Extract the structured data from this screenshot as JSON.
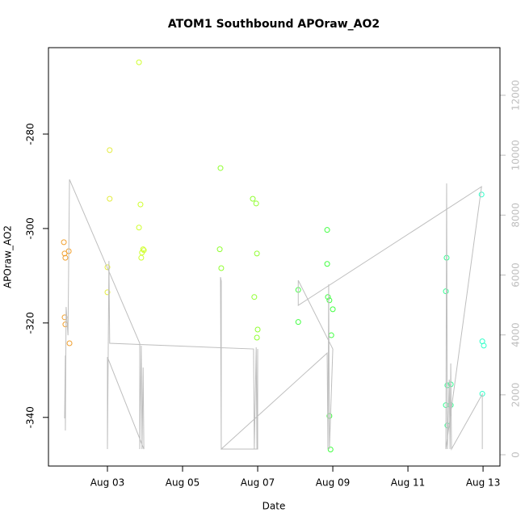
{
  "chart_data": {
    "type": "scatter",
    "title": "ATOM1 Southbound APOraw_AO2",
    "xlabel": "Date",
    "ylabel": "APOraw_AO2",
    "xlim": [
      1.43,
      13.45
    ],
    "xticks": [
      {
        "value": 3,
        "label": "Aug 03"
      },
      {
        "value": 5,
        "label": "Aug 05"
      },
      {
        "value": 7,
        "label": "Aug 07"
      },
      {
        "value": 9,
        "label": "Aug 09"
      },
      {
        "value": 11,
        "label": "Aug 11"
      },
      {
        "value": 13,
        "label": "Aug 13"
      }
    ],
    "ylim": [
      -350.3,
      -261.7
    ],
    "yticks": [
      -340,
      -320,
      -300,
      -280
    ],
    "y2lim": [
      -377,
      13590
    ],
    "y2ticks": [
      0,
      2000,
      4000,
      6000,
      8000,
      10000,
      12000
    ],
    "y2color": "#bebebe",
    "series": [
      {
        "color": "#f0a030",
        "x": [
          1.84,
          1.86,
          1.88,
          1.97,
          1.86,
          1.88,
          1.99
        ],
        "values": [
          -302.9,
          -305.3,
          -306.2,
          -304.8,
          -318.8,
          -320.3,
          -324.3
        ]
      },
      {
        "color": "#e4ec40",
        "x": [
          3.06,
          3.06,
          3.0,
          3.0
        ],
        "values": [
          -283.4,
          -293.7,
          -308.2,
          -313.5
        ]
      },
      {
        "color": "#d0ff30",
        "x": [
          3.84,
          3.88,
          3.84,
          3.9,
          3.95,
          3.97,
          3.92
        ],
        "values": [
          -264.8,
          -294.9,
          -299.8,
          -306.2,
          -304.4,
          -304.6,
          -305.1
        ]
      },
      {
        "color": "#90ff30",
        "x": [
          6.01,
          5.99,
          6.03,
          6.87,
          6.96,
          6.98,
          6.91,
          7.0,
          6.98
        ],
        "values": [
          -287.2,
          -304.4,
          -308.4,
          -293.7,
          -294.7,
          -305.3,
          -314.5,
          -321.4,
          -323.1
        ]
      },
      {
        "color": "#40ff40",
        "x": [
          8.08,
          8.08,
          8.85,
          8.85,
          8.87,
          8.91,
          9.0,
          8.96,
          8.91,
          8.94
        ],
        "values": [
          -313.0,
          -319.8,
          -300.3,
          -307.5,
          -314.5,
          -315.2,
          -317.1,
          -322.6,
          -339.7,
          -346.8
        ]
      },
      {
        "color": "#30ff90",
        "x": [
          12.03,
          12.01,
          12.05,
          12.14,
          12.01,
          12.14,
          12.05
        ],
        "values": [
          -306.2,
          -313.3,
          -333.2,
          -333.0,
          -337.4,
          -337.4,
          -341.7
        ]
      },
      {
        "color": "#30ffc8",
        "x": [
          12.96,
          12.98,
          13.02,
          12.98
        ],
        "values": [
          -292.8,
          -323.9,
          -324.8,
          -335.0
        ]
      },
      {
        "type": "line",
        "axis": "y2",
        "color": "#bebebe",
        "x": [
          1.86,
          1.88,
          1.88,
          1.9,
          1.95,
          1.99,
          3.86,
          3.86,
          3.9,
          3.92,
          3.95,
          3.97,
          3.0,
          3.0,
          3.02,
          3.04,
          3.06,
          6.89,
          6.91,
          6.96,
          6.98,
          7.0,
          7.0,
          6.03,
          6.01,
          6.03,
          6.03,
          8.85,
          8.87,
          8.89,
          8.91,
          9.0,
          8.08,
          8.08,
          12.96,
          12.01,
          12.03,
          12.05,
          12.1,
          12.12,
          12.14,
          12.16,
          12.98,
          12.98
        ],
        "values": [
          1213,
          3315,
          809,
          4933,
          3989,
          9191,
          3720,
          189,
          3639,
          189,
          2911,
          189,
          3261,
          189,
          3315,
          6469,
          3720,
          3531,
          189,
          3585,
          189,
          3531,
          189,
          189,
          5930,
          5795,
          189,
          3396,
          189,
          5687,
          189,
          3531,
          5822,
          4987,
          8949,
          189,
          9057,
          189,
          2507,
          189,
          3046,
          189,
          2022,
          189
        ]
      }
    ]
  }
}
